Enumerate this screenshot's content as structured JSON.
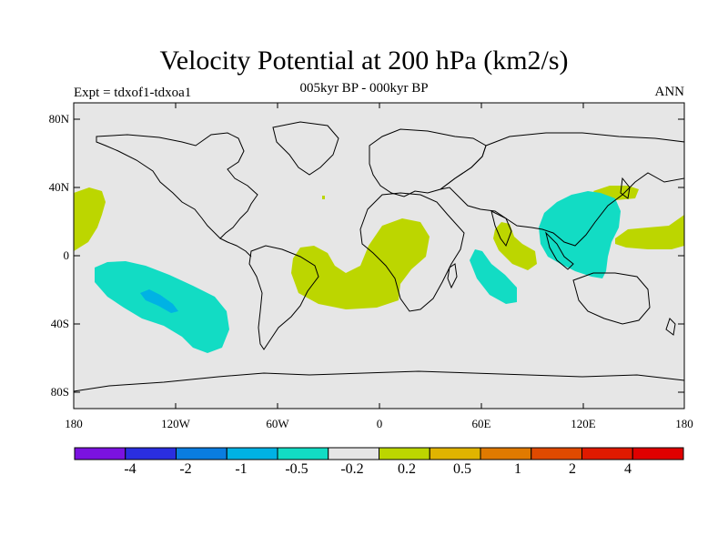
{
  "title": "Velocity Potential at 200 hPa (km2/s)",
  "subtitle": "005kyr BP - 000kyr BP",
  "experiment": "Expt = tdxof1-tdxoa1",
  "season": "ANN",
  "latitude_labels": [
    "80N",
    "40N",
    "0",
    "40S",
    "80S"
  ],
  "longitude_labels": [
    "180",
    "120W",
    "60W",
    "0",
    "60E",
    "120E",
    "180"
  ],
  "colorbar": {
    "colors": [
      "#7b12e0",
      "#2a2ee0",
      "#0a7de0",
      "#00b2e4",
      "#12dcc4",
      "#e6e6e6",
      "#bcd600",
      "#e0b400",
      "#e07a00",
      "#e04a00",
      "#e01a00",
      "#e00000"
    ],
    "labels": [
      "-4",
      "-2",
      "-1",
      "-0.5",
      "-0.2",
      "0.2",
      "0.5",
      "1",
      "2",
      "4"
    ]
  },
  "colors": {
    "background": "#e6e6e6",
    "positive": "#bcd600",
    "negative": "#12dcc4",
    "strong_negative": "#00b2e4"
  }
}
